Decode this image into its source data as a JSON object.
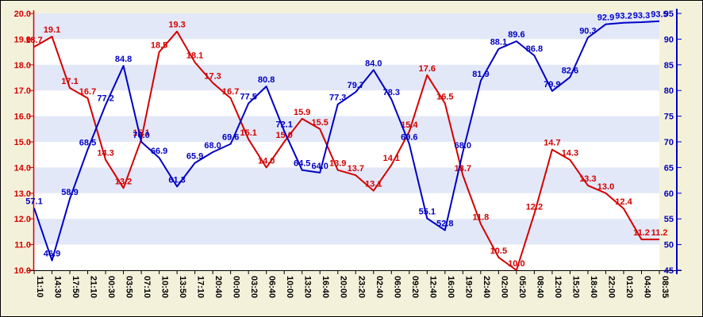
{
  "window": {
    "background": "#F4F1DB",
    "border_color": "#000000"
  },
  "chart_data": {
    "type": "line",
    "title": "",
    "x_axis": {
      "tick_labels": [
        "11:10",
        "14:30",
        "17:50",
        "21:10",
        "00:30",
        "03:50",
        "07:10",
        "10:30",
        "13:50",
        "17:10",
        "20:40",
        "00:00",
        "03:20",
        "06:40",
        "10:00",
        "13:20",
        "16:40",
        "20:00",
        "23:20",
        "02:40",
        "06:00",
        "09:20",
        "12:40",
        "16:00",
        "19:20",
        "22:40",
        "02:00",
        "05:20",
        "08:40",
        "12:00",
        "15:20",
        "18:40",
        "22:00",
        "01:20",
        "04:40",
        "08:35"
      ],
      "label_color": "#000000"
    },
    "left_axis": {
      "min": 10,
      "max": 20,
      "step": 1,
      "tick_labels": [
        "20.0",
        "19.0",
        "18.0",
        "17.0",
        "16.0",
        "15.0",
        "14.0",
        "13.0",
        "12.0",
        "11.0",
        "10.0"
      ],
      "color": "#D40000"
    },
    "right_axis": {
      "min": 45,
      "max": 95,
      "step": 5,
      "tick_labels": [
        "95",
        "90",
        "85",
        "80",
        "75",
        "70",
        "65",
        "60",
        "55",
        "50",
        "45"
      ],
      "color": "#0000C4"
    },
    "plot": {
      "band_color_a": "#E2E8F8",
      "band_color_b": "#FFFFFF",
      "grid": "horizontal-bands",
      "legend": "none",
      "bottom_axis_color": "#000000"
    },
    "series": [
      {
        "name": "temperature",
        "axis": "left",
        "color": "#D40000",
        "values": [
          18.7,
          19.1,
          17.1,
          16.7,
          14.3,
          13.2,
          15.1,
          18.5,
          19.3,
          18.1,
          17.3,
          16.7,
          15.1,
          14.0,
          15.0,
          15.9,
          15.5,
          13.9,
          13.7,
          13.1,
          14.1,
          15.4,
          17.6,
          16.5,
          13.7,
          11.8,
          10.5,
          10.0,
          12.2,
          14.7,
          14.3,
          13.3,
          13.0,
          12.4,
          11.2,
          11.2
        ]
      },
      {
        "name": "humidity",
        "axis": "right",
        "color": "#0000C4",
        "values": [
          57.1,
          46.9,
          58.9,
          68.5,
          77.2,
          84.8,
          70.0,
          66.9,
          61.3,
          65.9,
          68.0,
          69.6,
          77.5,
          80.8,
          72.1,
          64.5,
          64.0,
          77.3,
          79.7,
          84.0,
          78.3,
          69.6,
          55.1,
          52.8,
          68.0,
          81.9,
          88.1,
          89.6,
          86.8,
          79.9,
          82.6,
          90.3,
          92.9,
          93.2,
          93.3,
          93.5
        ]
      }
    ]
  }
}
